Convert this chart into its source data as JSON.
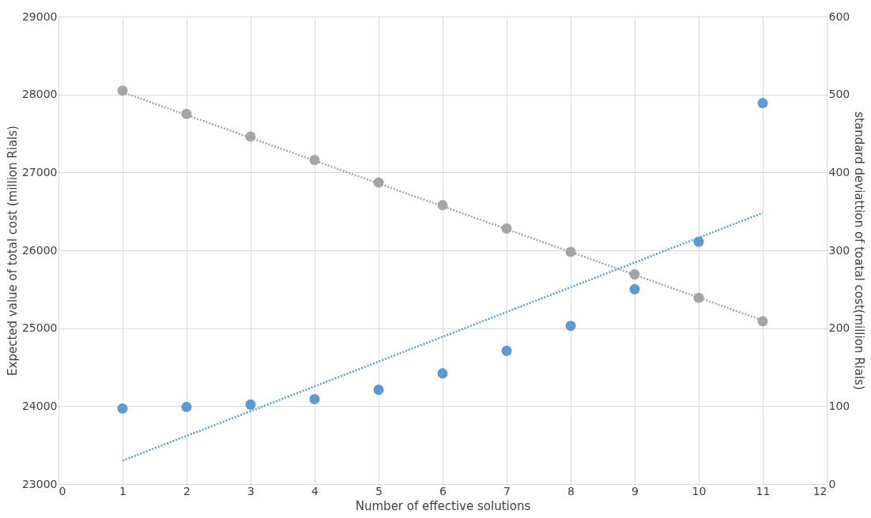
{
  "chart_data": {
    "type": "scatter",
    "xlabel": "Number of effective solutions",
    "ylabel": "Expected value of total cost (million Rials)",
    "y2label": "standard deviattion of toatal cost(million Rials)",
    "xlim": [
      0,
      12
    ],
    "xticks": [
      0,
      1,
      2,
      3,
      4,
      5,
      6,
      7,
      8,
      9,
      10,
      11,
      12
    ],
    "ylim": [
      23000,
      29000
    ],
    "yticks": [
      23000,
      24000,
      25000,
      26000,
      27000,
      28000,
      29000
    ],
    "y2lim": [
      0,
      600
    ],
    "y2ticks": [
      0,
      100,
      200,
      300,
      400,
      500,
      600
    ],
    "grid": true,
    "series": [
      {
        "marker": "circle",
        "color": "#5b9bd5",
        "x": [
          1,
          2,
          3,
          4,
          5,
          6,
          7,
          8,
          9,
          10,
          11
        ],
        "values": [
          23970,
          23990,
          24020,
          24090,
          24210,
          24420,
          24710,
          25030,
          25500,
          26110,
          27890
        ]
      },
      {
        "type": "line",
        "line_style": "dotted",
        "marker": "none",
        "color": "#5b9bd5",
        "x": [
          1,
          11
        ],
        "values": [
          23300,
          26480
        ]
      },
      {
        "marker": "circle",
        "axis": "y2",
        "color": "#a5a5a5",
        "x": [
          1,
          2,
          3,
          4,
          5,
          6,
          7,
          8,
          9,
          10,
          11
        ],
        "values": [
          505,
          475,
          446,
          416,
          387,
          358,
          328,
          298,
          269,
          239,
          209
        ]
      },
      {
        "type": "line",
        "axis": "y2",
        "line_style": "dotted",
        "marker": "none",
        "color": "#a5a5a5",
        "x": [
          1,
          11
        ],
        "values": [
          503,
          210
        ]
      }
    ]
  }
}
